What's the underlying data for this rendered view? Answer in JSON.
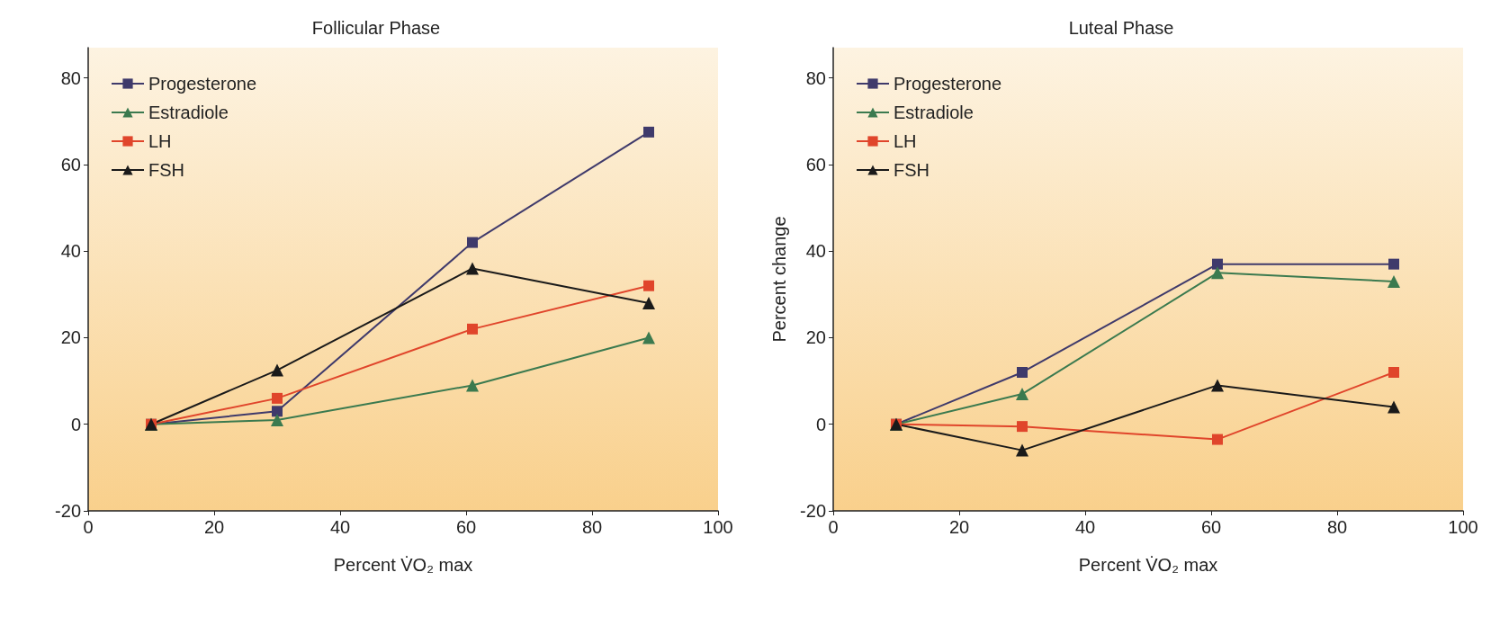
{
  "chart_data": [
    {
      "type": "line",
      "title": "Follicular Phase",
      "xlabel": "Percent V̇O₂ max",
      "x": [
        10,
        30,
        61,
        89
      ],
      "xlim": [
        0,
        100
      ],
      "xticks": [
        0,
        20,
        40,
        60,
        80,
        100
      ],
      "ylim": [
        -20,
        87
      ],
      "yticks": [
        -20,
        0,
        20,
        40,
        60,
        80
      ],
      "grid": false,
      "legend": "top left",
      "line_style": "solid",
      "series": [
        {
          "name": "Progesterone",
          "color": "#3f3a6b",
          "marker": "square",
          "values": [
            0,
            3,
            42,
            67.5
          ]
        },
        {
          "name": "Estradiole",
          "color": "#3b7a4f",
          "marker": "triangle",
          "values": [
            0,
            1,
            9,
            20
          ]
        },
        {
          "name": "LH",
          "color": "#e0452b",
          "marker": "square",
          "values": [
            0,
            6,
            22,
            32
          ]
        },
        {
          "name": "FSH",
          "color": "#1a1a1a",
          "marker": "triangle",
          "values": [
            0,
            12.5,
            36,
            28
          ]
        }
      ]
    },
    {
      "type": "line",
      "title": "Luteal Phase",
      "xlabel": "Percent V̇O₂ max",
      "ylabel": "Percent change",
      "x": [
        10,
        30,
        61,
        89
      ],
      "xlim": [
        0,
        100
      ],
      "xticks": [
        0,
        20,
        40,
        60,
        80,
        100
      ],
      "ylim": [
        -20,
        87
      ],
      "yticks": [
        -20,
        0,
        20,
        40,
        60,
        80
      ],
      "grid": false,
      "legend": "top left",
      "line_style": "solid",
      "series": [
        {
          "name": "Progesterone",
          "color": "#3f3a6b",
          "marker": "square",
          "values": [
            0,
            12,
            37,
            37
          ]
        },
        {
          "name": "Estradiole",
          "color": "#3b7a4f",
          "marker": "triangle",
          "values": [
            0,
            7,
            35,
            33
          ]
        },
        {
          "name": "LH",
          "color": "#e0452b",
          "marker": "square",
          "values": [
            0,
            -0.5,
            -3.5,
            12
          ]
        },
        {
          "name": "FSH",
          "color": "#1a1a1a",
          "marker": "triangle",
          "values": [
            0,
            -6,
            9,
            4
          ]
        }
      ]
    }
  ]
}
